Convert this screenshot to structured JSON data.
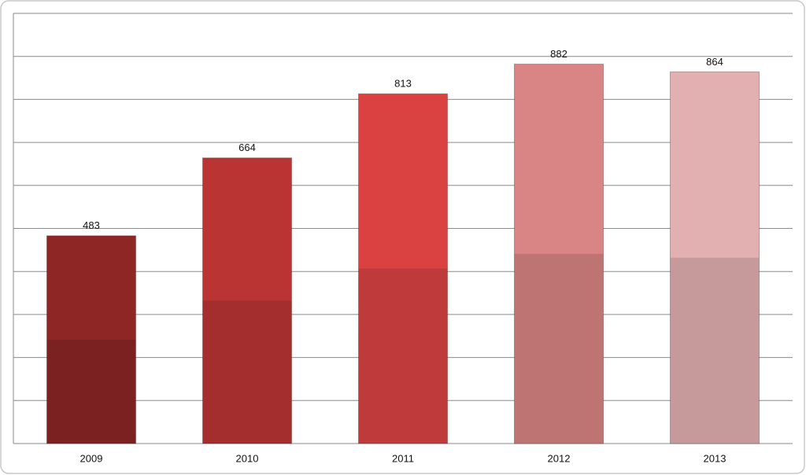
{
  "chart_data": {
    "type": "bar",
    "categories": [
      "2009",
      "2010",
      "2011",
      "2012",
      "2013"
    ],
    "values": [
      483,
      664,
      813,
      882,
      864
    ],
    "colors": [
      "#8e2626",
      "#bb3434",
      "#da4242",
      "#da8585",
      "#e2b0b0"
    ],
    "ylim": [
      0,
      1000
    ],
    "yticks": [
      0,
      100,
      200,
      300,
      400,
      500,
      600,
      700,
      800,
      900,
      1000
    ],
    "grid": true
  }
}
